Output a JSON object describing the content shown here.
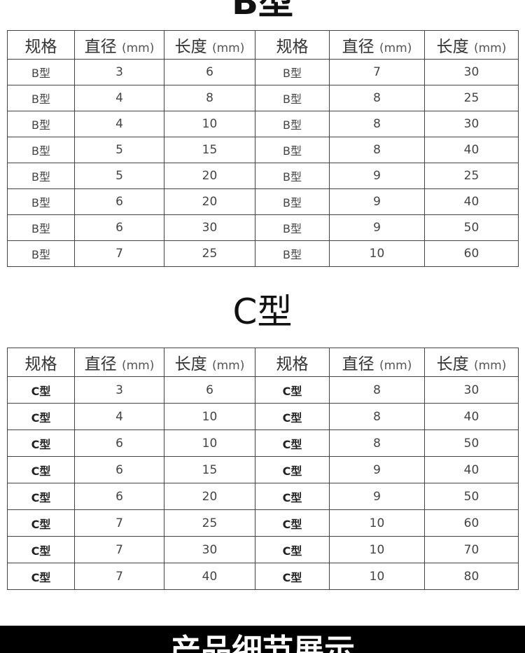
{
  "b_section": {
    "title": "B型",
    "headers": [
      {
        "label": "规格",
        "unit": ""
      },
      {
        "label": "直径",
        "unit": "(mm)"
      },
      {
        "label": "长度",
        "unit": "(mm)"
      },
      {
        "label": "规格",
        "unit": ""
      },
      {
        "label": "直径",
        "unit": "(mm)"
      },
      {
        "label": "长度",
        "unit": "(mm)"
      }
    ],
    "rows": [
      [
        "B型",
        "3",
        "6",
        "B型",
        "7",
        "30"
      ],
      [
        "B型",
        "4",
        "8",
        "B型",
        "8",
        "25"
      ],
      [
        "B型",
        "4",
        "10",
        "B型",
        "8",
        "30"
      ],
      [
        "B型",
        "5",
        "15",
        "B型",
        "8",
        "40"
      ],
      [
        "B型",
        "5",
        "20",
        "B型",
        "9",
        "25"
      ],
      [
        "B型",
        "6",
        "20",
        "B型",
        "9",
        "40"
      ],
      [
        "B型",
        "6",
        "30",
        "B型",
        "9",
        "50"
      ],
      [
        "B型",
        "7",
        "25",
        "B型",
        "10",
        "60"
      ]
    ]
  },
  "c_section": {
    "title": "C型",
    "headers": [
      {
        "label": "规格",
        "unit": ""
      },
      {
        "label": "直径",
        "unit": "(mm)"
      },
      {
        "label": "长度",
        "unit": "(mm)"
      },
      {
        "label": "规格",
        "unit": ""
      },
      {
        "label": "直径",
        "unit": "(mm)"
      },
      {
        "label": "长度",
        "unit": "(mm)"
      }
    ],
    "rows": [
      [
        "C型",
        "3",
        "6",
        "C型",
        "8",
        "30"
      ],
      [
        "C型",
        "4",
        "10",
        "C型",
        "8",
        "40"
      ],
      [
        "C型",
        "6",
        "10",
        "C型",
        "8",
        "50"
      ],
      [
        "C型",
        "6",
        "15",
        "C型",
        "9",
        "40"
      ],
      [
        "C型",
        "6",
        "20",
        "C型",
        "9",
        "50"
      ],
      [
        "C型",
        "7",
        "25",
        "C型",
        "10",
        "60"
      ],
      [
        "C型",
        "7",
        "30",
        "C型",
        "10",
        "70"
      ],
      [
        "C型",
        "7",
        "40",
        "C型",
        "10",
        "80"
      ]
    ]
  },
  "banner": {
    "title": "产品细节展示"
  }
}
